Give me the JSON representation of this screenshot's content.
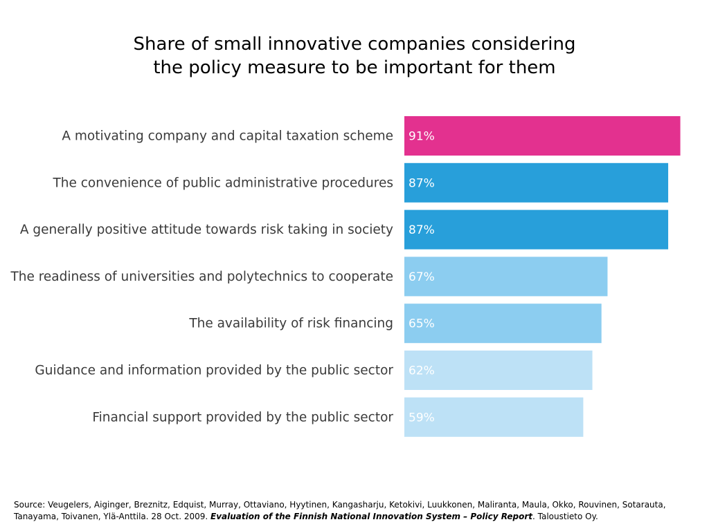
{
  "title_line1": "Share of small innovative companies considering",
  "title_line2": "the policy measure to be important for them",
  "chart_data": {
    "type": "bar",
    "orientation": "horizontal",
    "categories": [
      "A motivating company and capital taxation scheme",
      "The convenience of public administrative procedures",
      "A generally positive attitude towards risk taking in society",
      "The readiness of universities and polytechnics to cooperate",
      "The availability of risk financing",
      "Guidance and information provided by the public sector",
      "Financial support provided by the public sector"
    ],
    "values": [
      91,
      87,
      87,
      67,
      65,
      62,
      59
    ],
    "value_labels": [
      "91%",
      "87%",
      "87%",
      "67%",
      "65%",
      "62%",
      "59%"
    ],
    "colors": [
      "#e3318f",
      "#289fda",
      "#289fda",
      "#8ccdf0",
      "#8ccdf0",
      "#bde1f6",
      "#bde1f6"
    ],
    "xlim": [
      0,
      100
    ],
    "grid": false,
    "legend": "none"
  },
  "source": {
    "prefix": "Source: Veugelers, Aiginger, Breznitz, Edquist, Murray, Ottaviano, Hyytinen, Kangasharju, Ketokivi, Luukkonen, Maliranta, Maula, Okko, Rouvinen, Sotarauta, Tanayama, Toivanen, Ylä-Anttila. 28 Oct. 2009. ",
    "report": "Evaluation of the Finnish National Innovation System – Policy Report",
    "suffix": ". Taloustieto Oy."
  }
}
